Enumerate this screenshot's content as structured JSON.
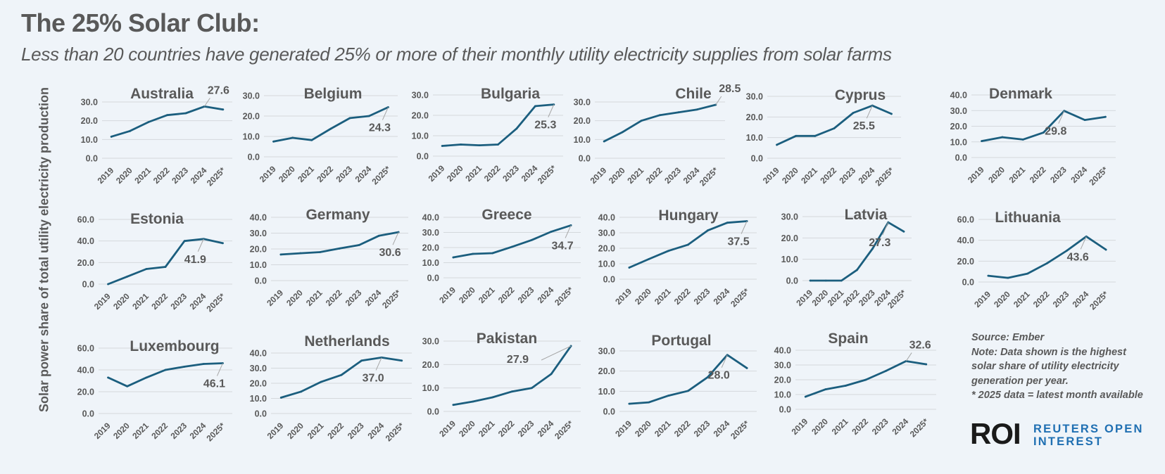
{
  "title": "The 25% Solar Club:",
  "subtitle": "Less than 20 countries have generated 25% or more of their monthly utility electricity supplies from solar farms",
  "y_axis_label": "Solar power share of total utility electricity production",
  "notes": {
    "source": "Source: Ember",
    "note_lines": [
      "Note: Data shown is the highest",
      "solar share of utility electricity",
      "generation per year."
    ],
    "footnote": "* 2025 data = latest month available"
  },
  "logo": {
    "mark": "ROI",
    "line1": "REUTERS OPEN",
    "line2": "INTEREST"
  },
  "colors": {
    "line": "#1b5e7e",
    "grid": "#d4d8dc",
    "text": "#595959",
    "leader": "#a6a6a6",
    "logo_blue": "#1f6fb2"
  },
  "chart_data": [
    {
      "type": "line",
      "title": "Australia",
      "categories": [
        "2019",
        "2020",
        "2021",
        "2022",
        "2023",
        "2024",
        "2025*"
      ],
      "values": [
        11.5,
        14.5,
        19.3,
        23.0,
        24.0,
        27.6,
        26.0
      ],
      "yticks": [
        "0.0",
        "10.0",
        "20.0",
        "30.0"
      ],
      "ylim": [
        0,
        30
      ],
      "label": "27.6",
      "label_index": 5
    },
    {
      "type": "line",
      "title": "Belgium",
      "categories": [
        "2019",
        "2020",
        "2021",
        "2022",
        "2023",
        "2024",
        "2025*"
      ],
      "values": [
        7.5,
        9.3,
        8.2,
        13.8,
        19.0,
        20.0,
        24.3
      ],
      "yticks": [
        "0.0",
        "10.0",
        "20.0",
        "30.0"
      ],
      "ylim": [
        0,
        30
      ],
      "label": "24.3",
      "label_index": 6
    },
    {
      "type": "line",
      "title": "Bulgaria",
      "categories": [
        "2019",
        "2020",
        "2021",
        "2022",
        "2023",
        "2024",
        "2025*"
      ],
      "values": [
        5.0,
        5.7,
        5.3,
        5.7,
        13.5,
        24.5,
        25.3
      ],
      "yticks": [
        "0.0",
        "10.0",
        "20.0",
        "30.0"
      ],
      "ylim": [
        0,
        30
      ],
      "label": "25.3",
      "label_index": 6
    },
    {
      "type": "line",
      "title": "Chile",
      "categories": [
        "2019",
        "2020",
        "2021",
        "2022",
        "2023",
        "2024",
        "2025*"
      ],
      "values": [
        9.0,
        14.0,
        20.0,
        23.0,
        24.5,
        26.0,
        28.5
      ],
      "yticks": [
        "0.0",
        "10.0",
        "20.0",
        "30.0"
      ],
      "ylim": [
        0,
        30
      ],
      "label": "28.5",
      "label_index": 6
    },
    {
      "type": "line",
      "title": "Cyprus",
      "categories": [
        "2019",
        "2020",
        "2021",
        "2022",
        "2023",
        "2024",
        "2025*"
      ],
      "values": [
        6.5,
        10.8,
        10.8,
        14.5,
        22.0,
        25.5,
        21.5
      ],
      "yticks": [
        "0.0",
        "10.0",
        "20.0",
        "30.0"
      ],
      "ylim": [
        0,
        30
      ],
      "label": "25.5",
      "label_index": 5
    },
    {
      "type": "line",
      "title": "Denmark",
      "categories": [
        "2019",
        "2020",
        "2021",
        "2022",
        "2023",
        "2024",
        "2025*"
      ],
      "values": [
        10.5,
        13.0,
        11.5,
        16.0,
        29.8,
        24.0,
        26.0
      ],
      "yticks": [
        "0.0",
        "10.0",
        "20.0",
        "30.0",
        "40.0"
      ],
      "ylim": [
        0,
        40
      ],
      "label": "29.8",
      "label_index": 4
    },
    {
      "type": "line",
      "title": "Estonia",
      "categories": [
        "2019",
        "2020",
        "2021",
        "2022",
        "2023",
        "2024",
        "2025*"
      ],
      "values": [
        0.0,
        7.0,
        14.0,
        16.0,
        40.0,
        41.9,
        38.0
      ],
      "yticks": [
        "0.0",
        "20.0",
        "40.0",
        "60.0"
      ],
      "ylim": [
        0,
        60
      ],
      "label": "41.9",
      "label_index": 5
    },
    {
      "type": "line",
      "title": "Germany",
      "categories": [
        "2019",
        "2020",
        "2021",
        "2022",
        "2023",
        "2024",
        "2025*"
      ],
      "values": [
        16.5,
        17.3,
        18.0,
        20.3,
        22.5,
        28.3,
        30.6
      ],
      "yticks": [
        "0.0",
        "10.0",
        "20.0",
        "30.0",
        "40.0"
      ],
      "ylim": [
        0,
        40
      ],
      "label": "30.6",
      "label_index": 6
    },
    {
      "type": "line",
      "title": "Greece",
      "categories": [
        "2019",
        "2020",
        "2021",
        "2022",
        "2023",
        "2024",
        "2025*"
      ],
      "values": [
        13.5,
        15.8,
        16.3,
        20.5,
        25.0,
        30.5,
        34.7
      ],
      "yticks": [
        "0.0",
        "10.0",
        "20.0",
        "30.0",
        "40.0"
      ],
      "ylim": [
        0,
        40
      ],
      "label": "34.7",
      "label_index": 6
    },
    {
      "type": "line",
      "title": "Hungary",
      "categories": [
        "2019",
        "2020",
        "2021",
        "2022",
        "2023",
        "2024",
        "2025*"
      ],
      "values": [
        7.5,
        13.0,
        18.3,
        22.3,
        31.5,
        36.5,
        37.5
      ],
      "yticks": [
        "0.0",
        "10.0",
        "20.0",
        "30.0",
        "40.0"
      ],
      "ylim": [
        0,
        40
      ],
      "label": "37.5",
      "label_index": 6
    },
    {
      "type": "line",
      "title": "Latvia",
      "categories": [
        "2019",
        "2020",
        "2021",
        "2022",
        "2023",
        "2024",
        "2025*"
      ],
      "values": [
        0.0,
        0.0,
        0.0,
        5.0,
        15.0,
        27.3,
        23.0
      ],
      "yticks": [
        "0.0",
        "10.0",
        "20.0",
        "30.0"
      ],
      "ylim": [
        0,
        30
      ],
      "label": "27.3",
      "label_index": 5
    },
    {
      "type": "line",
      "title": "Lithuania",
      "categories": [
        "2019",
        "2020",
        "2021",
        "2022",
        "2023",
        "2024",
        "2025*"
      ],
      "values": [
        6.0,
        4.0,
        8.0,
        18.0,
        30.0,
        43.6,
        31.0
      ],
      "yticks": [
        "0.0",
        "20.0",
        "40.0",
        "60.0"
      ],
      "ylim": [
        0,
        60
      ],
      "label": "43.6",
      "label_index": 5
    },
    {
      "type": "line",
      "title": "Luxembourg",
      "categories": [
        "2019",
        "2020",
        "2021",
        "2022",
        "2023",
        "2024",
        "2025*"
      ],
      "values": [
        33.0,
        25.0,
        33.0,
        40.0,
        43.0,
        45.5,
        46.1
      ],
      "yticks": [
        "0.0",
        "20.0",
        "40.0",
        "60.0"
      ],
      "ylim": [
        0,
        60
      ],
      "label": "46.1",
      "label_index": 6
    },
    {
      "type": "line",
      "title": "Netherlands",
      "categories": [
        "2019",
        "2020",
        "2021",
        "2022",
        "2023",
        "2024",
        "2025*"
      ],
      "values": [
        10.5,
        14.5,
        21.0,
        25.5,
        35.0,
        37.0,
        35.0
      ],
      "yticks": [
        "0.0",
        "10.0",
        "20.0",
        "30.0",
        "40.0"
      ],
      "ylim": [
        0,
        40
      ],
      "label": "37.0",
      "label_index": 5
    },
    {
      "type": "line",
      "title": "Pakistan",
      "categories": [
        "2019",
        "2020",
        "2021",
        "2022",
        "2023",
        "2024",
        "2025*"
      ],
      "values": [
        2.8,
        4.2,
        6.0,
        8.5,
        10.0,
        16.0,
        27.9
      ],
      "yticks": [
        "0.0",
        "10.0",
        "20.0",
        "30.0"
      ],
      "ylim": [
        0,
        30
      ],
      "label": "27.9",
      "label_index": 6
    },
    {
      "type": "line",
      "title": "Portugal",
      "categories": [
        "2019",
        "2020",
        "2021",
        "2022",
        "2023",
        "2024",
        "2025*"
      ],
      "values": [
        3.8,
        4.5,
        7.8,
        10.2,
        17.0,
        28.0,
        21.5
      ],
      "yticks": [
        "0.0",
        "10.0",
        "20.0",
        "30.0"
      ],
      "ylim": [
        0,
        30
      ],
      "label": "28.0",
      "label_index": 5
    },
    {
      "type": "line",
      "title": "Spain",
      "categories": [
        "2019",
        "2020",
        "2021",
        "2022",
        "2023",
        "2024",
        "2025*"
      ],
      "values": [
        8.5,
        13.5,
        16.0,
        20.0,
        26.0,
        32.6,
        30.5
      ],
      "yticks": [
        "0.0",
        "10.0",
        "20.0",
        "30.0",
        "40.0"
      ],
      "ylim": [
        0,
        40
      ],
      "label": "32.6",
      "label_index": 5
    }
  ]
}
